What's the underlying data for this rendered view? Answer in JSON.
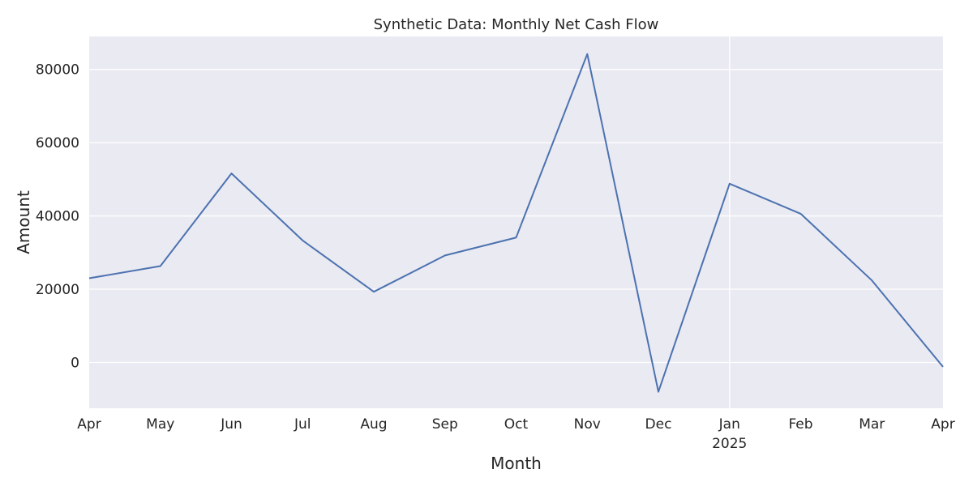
{
  "chart_data": {
    "type": "line",
    "title": "Synthetic Data: Monthly Net Cash Flow",
    "xlabel": "Month",
    "ylabel": "Amount",
    "x": [
      "2024-04",
      "2024-05",
      "2024-06",
      "2024-07",
      "2024-08",
      "2024-09",
      "2024-10",
      "2024-11",
      "2024-12",
      "2025-01",
      "2025-02",
      "2025-03",
      "2025-04"
    ],
    "x_tick_labels": [
      "Apr",
      "May",
      "Jun",
      "Jul",
      "Aug",
      "Sep",
      "Oct",
      "Nov",
      "Dec",
      "Jan",
      "Feb",
      "Mar",
      "Apr"
    ],
    "x_year_label": "2025",
    "series": [
      {
        "values": [
          23000,
          26300,
          51600,
          33300,
          19300,
          29200,
          34100,
          84200,
          -8000,
          48800,
          40600,
          22400,
          -1200
        ]
      }
    ],
    "ylim": [
      -12500,
      89000
    ],
    "yticks": [
      0,
      20000,
      40000,
      60000,
      80000
    ],
    "grid": true,
    "background": "#eaeaf2",
    "grid_color": "#ffffff",
    "line_color": "#4c72b0"
  }
}
